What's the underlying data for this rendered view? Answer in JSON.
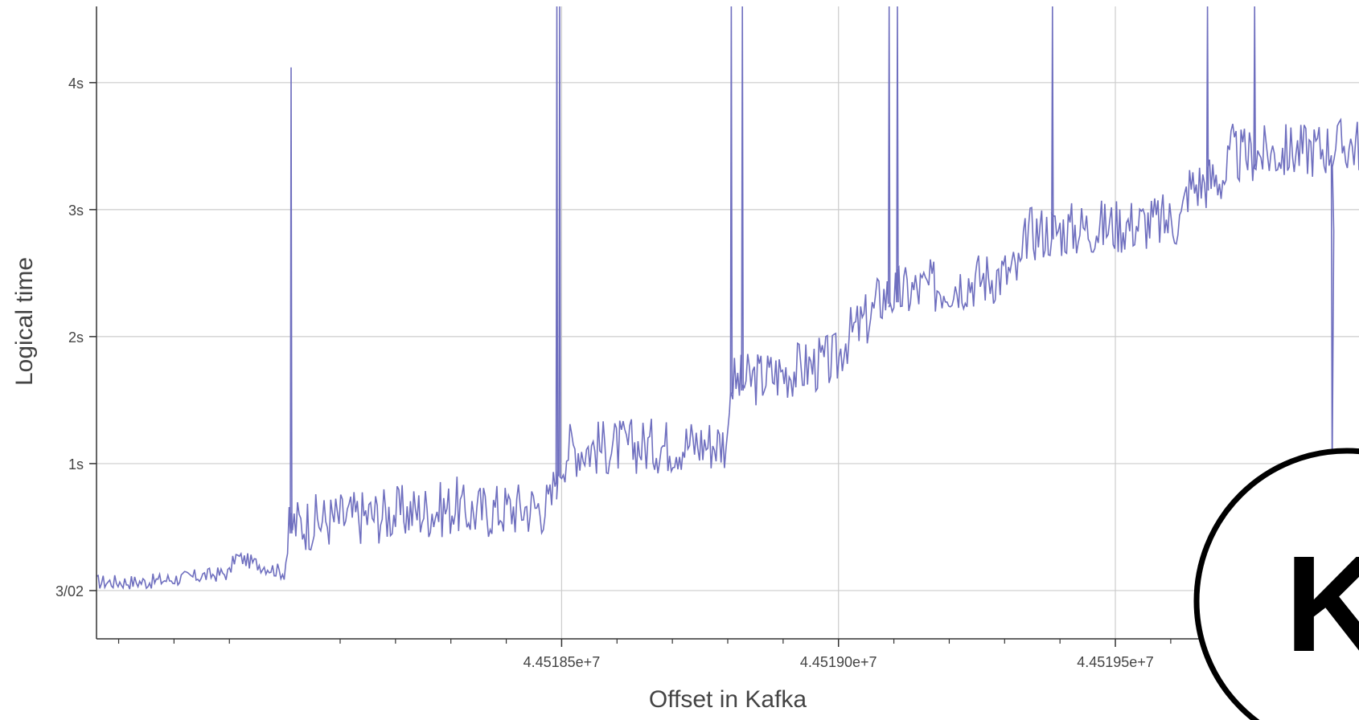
{
  "chart_data": {
    "type": "line",
    "title": "",
    "xlabel": "Offset in Kafka",
    "ylabel": "Logical time",
    "line_color": "#6f6fbf",
    "grid": true,
    "xlim": [
      44517660,
      44519940
    ],
    "ylim": [
      -0.38,
      4.6
    ],
    "x_ticks": [
      {
        "value": 44518500,
        "label": "4.45185e+7"
      },
      {
        "value": 44519000,
        "label": "4.45190e+7"
      },
      {
        "value": 44519500,
        "label": "4.45195e+7"
      }
    ],
    "y_ticks": [
      {
        "value": 0,
        "label": "3/02"
      },
      {
        "value": 1,
        "label": "1s"
      },
      {
        "value": 2,
        "label": "2s"
      },
      {
        "value": 3,
        "label": "3s"
      },
      {
        "value": 4,
        "label": "4s"
      }
    ],
    "series": [
      {
        "x": [
          44517660,
          44517750,
          44517900,
          44517910,
          44518000,
          44518010,
          44518100,
          44518300,
          44518310,
          44518320,
          44518480,
          44518490,
          44518500,
          44518510,
          44518800,
          44518800,
          44518850,
          44519000,
          44519010,
          44519060,
          44519070,
          44519080,
          44519330,
          44519340,
          44519620,
          44519630,
          44519700,
          44519710,
          44519720,
          44519940
        ],
        "y": [
          0.05,
          0.05,
          0.12,
          0.25,
          0.12,
          0.45,
          0.5,
          0.58,
          0.62,
          0.55,
          0.6,
          0.85,
          0.95,
          1.05,
          1.1,
          1.55,
          1.6,
          1.75,
          1.9,
          2.1,
          2.2,
          2.25,
          2.45,
          2.75,
          2.85,
          3.1,
          3.2,
          3.4,
          3.35,
          3.45
        ]
      }
    ],
    "spikes": [
      {
        "x": 44518010,
        "y": 4.12
      },
      {
        "x": 44518490,
        "y": 4.6
      },
      {
        "x": 44518495,
        "y": 4.6
      },
      {
        "x": 44518805,
        "y": 4.6
      },
      {
        "x": 44518825,
        "y": 4.6
      },
      {
        "x": 44519090,
        "y": 4.6
      },
      {
        "x": 44519105,
        "y": 4.6
      },
      {
        "x": 44519385,
        "y": 4.6
      },
      {
        "x": 44519665,
        "y": 4.6
      },
      {
        "x": 44519750,
        "y": 4.6
      }
    ],
    "dips": [
      {
        "x": 44519890,
        "y": 0.9
      }
    ],
    "logo": {
      "letter": "K"
    }
  }
}
